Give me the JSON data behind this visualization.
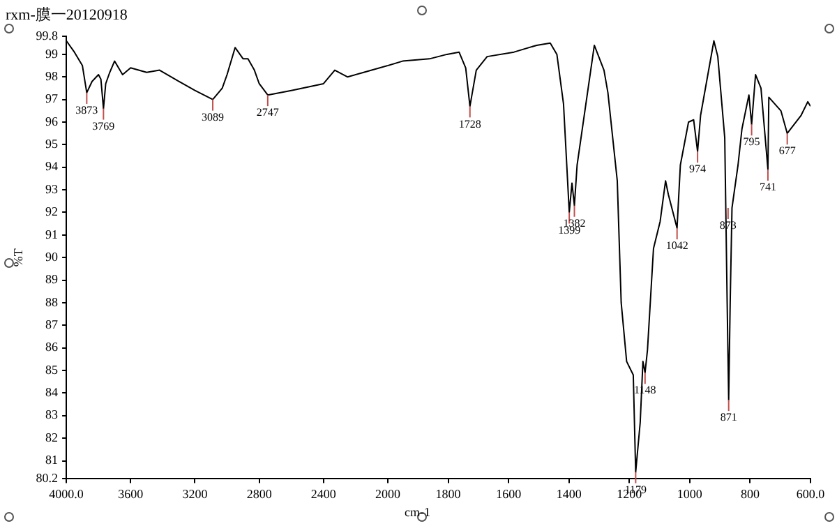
{
  "chart_data": [
    {
      "type": "line",
      "title": "rxm-膜一20120918",
      "ylabel": "%T",
      "xlim": [
        4000,
        2000
      ],
      "ylim": [
        80.2,
        99.8
      ],
      "xticks": [
        {
          "value": 4000,
          "label": "4000.0"
        },
        3600,
        3200,
        2800,
        2400
      ],
      "yticks": [
        80.2,
        81,
        82,
        83,
        84,
        85,
        86,
        87,
        88,
        89,
        90,
        91,
        92,
        93,
        94,
        95,
        96,
        97,
        98,
        99,
        99.8
      ],
      "grid": false,
      "legend": false,
      "marker": "none",
      "line_style": "solid",
      "series": [
        {
          "color": "#000000",
          "x": [
            4000,
            3950,
            3900,
            3873,
            3840,
            3800,
            3785,
            3769,
            3755,
            3730,
            3700,
            3650,
            3600,
            3500,
            3420,
            3300,
            3200,
            3089,
            3030,
            3000,
            2950,
            2900,
            2870,
            2830,
            2800,
            2747,
            2600,
            2400,
            2330,
            2250,
            2150,
            2000
          ],
          "values": [
            99.6,
            99.1,
            98.5,
            97.3,
            97.8,
            98.1,
            97.9,
            96.6,
            97.7,
            98.2,
            98.7,
            98.1,
            98.4,
            98.2,
            98.3,
            97.8,
            97.4,
            97.0,
            97.5,
            98.1,
            99.3,
            98.8,
            98.8,
            98.3,
            97.7,
            97.2,
            97.4,
            97.7,
            98.3,
            98.0,
            98.2,
            98.5
          ]
        }
      ],
      "annotations": [
        {
          "text": "3873",
          "x": 3873,
          "y": 97.3
        },
        {
          "text": "3769",
          "x": 3769,
          "y": 96.6
        },
        {
          "text": "3089",
          "x": 3089,
          "y": 97.0
        },
        {
          "text": "2747",
          "x": 2747,
          "y": 97.2
        }
      ]
    },
    {
      "type": "line",
      "xlabel": "cm-1",
      "tick_labels": "x",
      "xlim": [
        2000,
        600
      ],
      "ylim": [
        80.2,
        99.8
      ],
      "xticks": [
        2000,
        1800,
        1600,
        1400,
        1200,
        1000,
        800,
        {
          "value": 600,
          "label": "600.0"
        }
      ],
      "grid": false,
      "legend": false,
      "marker": "none",
      "line_style": "solid",
      "series": [
        {
          "color": "#000000",
          "x": [
            2000,
            1951,
            1862,
            1804,
            1764,
            1742,
            1728,
            1707,
            1671,
            1582,
            1507,
            1462,
            1440,
            1418,
            1399,
            1390,
            1382,
            1373,
            1316,
            1284,
            1271,
            1240,
            1227,
            1209,
            1187,
            1179,
            1164,
            1155,
            1148,
            1140,
            1120,
            1098,
            1080,
            1071,
            1042,
            1031,
            1004,
            987,
            974,
            964,
            920,
            907,
            884,
            876,
            871,
            866,
            860,
            840,
            827,
            804,
            795,
            782,
            764,
            741,
            738,
            698,
            677,
            631,
            609,
            600
          ],
          "values": [
            98.5,
            98.7,
            98.8,
            99.0,
            99.1,
            98.4,
            96.7,
            98.3,
            98.9,
            99.1,
            99.4,
            99.5,
            99.0,
            96.8,
            92.0,
            93.3,
            92.3,
            94.1,
            99.4,
            98.3,
            97.3,
            93.4,
            88.0,
            85.4,
            84.8,
            80.5,
            82.7,
            85.4,
            84.9,
            85.9,
            90.4,
            91.6,
            93.4,
            92.8,
            91.3,
            94.1,
            96.0,
            96.1,
            94.7,
            96.3,
            99.6,
            98.9,
            95.3,
            88.0,
            83.7,
            88.0,
            92.2,
            94.1,
            95.7,
            97.2,
            95.9,
            98.1,
            97.5,
            93.9,
            97.1,
            96.5,
            95.5,
            96.3,
            96.9,
            96.7
          ]
        }
      ],
      "annotations": [
        {
          "text": "1728",
          "x": 1728,
          "y": 96.7
        },
        {
          "text": "1399",
          "x": 1399,
          "y": 92.0
        },
        {
          "text": "1382",
          "x": 1382,
          "y": 92.3
        },
        {
          "text": "1179",
          "x": 1179,
          "y": 80.5
        },
        {
          "text": "1148",
          "x": 1148,
          "y": 84.9
        },
        {
          "text": "1042",
          "x": 1042,
          "y": 91.3
        },
        {
          "text": "974",
          "x": 974,
          "y": 94.7
        },
        {
          "text": "873",
          "x": 873,
          "y": 92.2
        },
        {
          "text": "871",
          "x": 871,
          "y": 83.7
        },
        {
          "text": "795",
          "x": 795,
          "y": 95.9
        },
        {
          "text": "741",
          "x": 741,
          "y": 93.9
        },
        {
          "text": "677",
          "x": 677,
          "y": 95.5
        }
      ]
    }
  ]
}
